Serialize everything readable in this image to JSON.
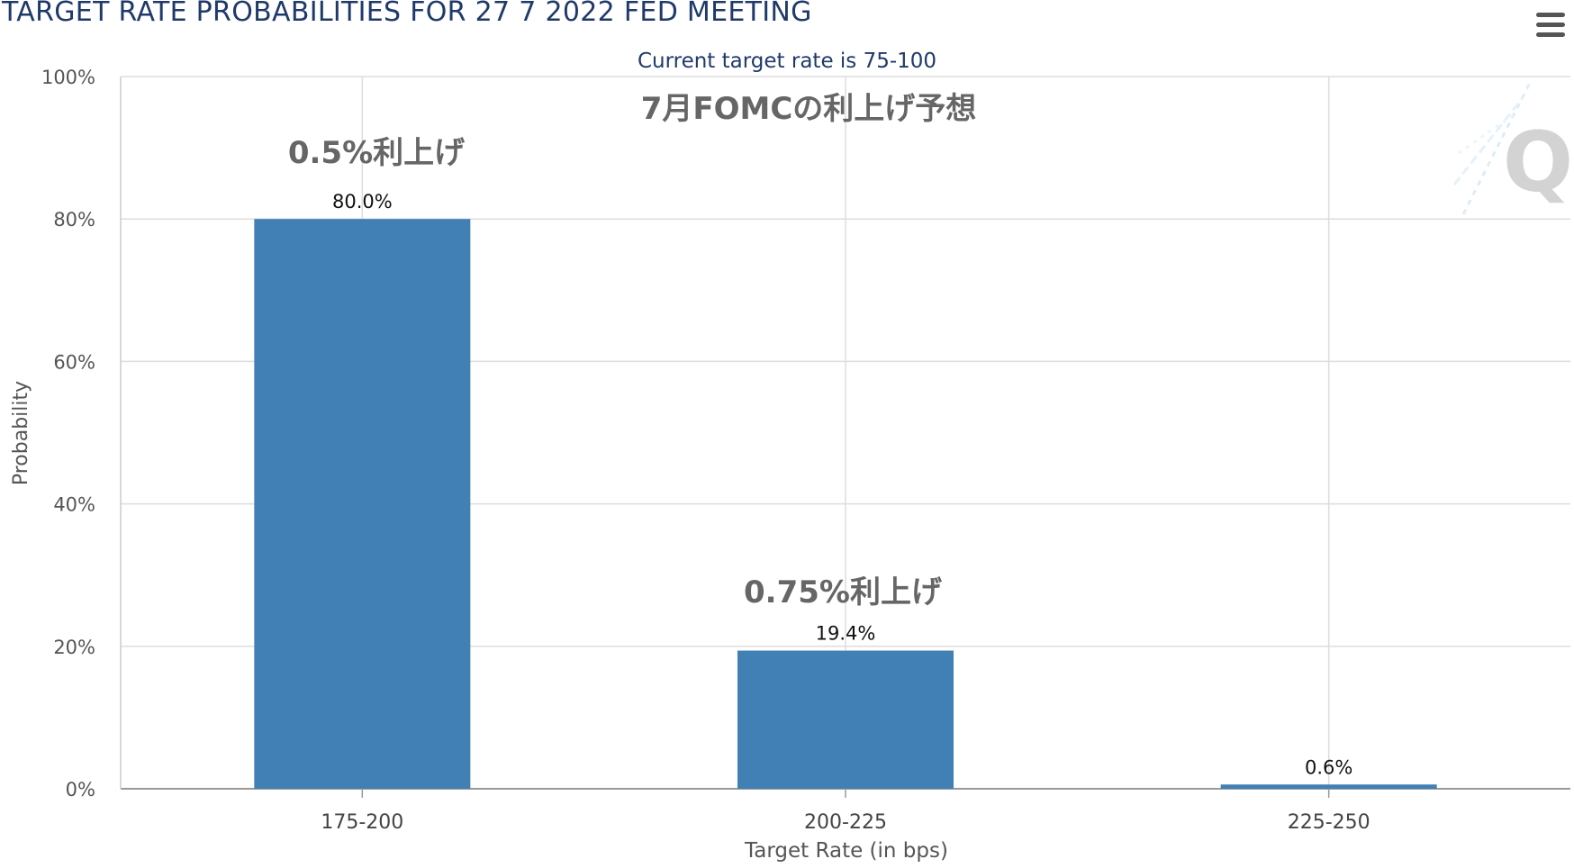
{
  "header": {
    "title": "TARGET RATE PROBABILITIES FOR 27 7 2022 FED MEETING"
  },
  "icons": {
    "menu": "hamburger-menu-icon",
    "watermark": "q-logo-watermark"
  },
  "colors": {
    "bar": "#4180b5",
    "title": "#1f3a6a",
    "annotation": "#666666"
  },
  "chart_data": {
    "type": "bar",
    "title": "TARGET RATE PROBABILITIES FOR 27 7 2022 FED MEETING",
    "subtitle": "Current target rate is 75-100",
    "xlabel": "Target Rate (in bps)",
    "ylabel": "Probability",
    "categories": [
      "175-200",
      "200-225",
      "225-250"
    ],
    "values": [
      80.0,
      19.4,
      0.6
    ],
    "data_labels": [
      "80.0%",
      "19.4%",
      "0.6%"
    ],
    "ylim": [
      0,
      100
    ],
    "yticks": [
      0,
      20,
      40,
      60,
      80,
      100
    ],
    "ytick_labels": [
      "0%",
      "20%",
      "40%",
      "60%",
      "80%",
      "100%"
    ],
    "grid": true,
    "annotations": [
      {
        "text": "7月FOMCの利上げ予想",
        "anchor": "top-center"
      },
      {
        "text": "0.5%利上げ",
        "category": "175-200"
      },
      {
        "text": "0.75%利上げ",
        "category": "200-225"
      }
    ]
  }
}
